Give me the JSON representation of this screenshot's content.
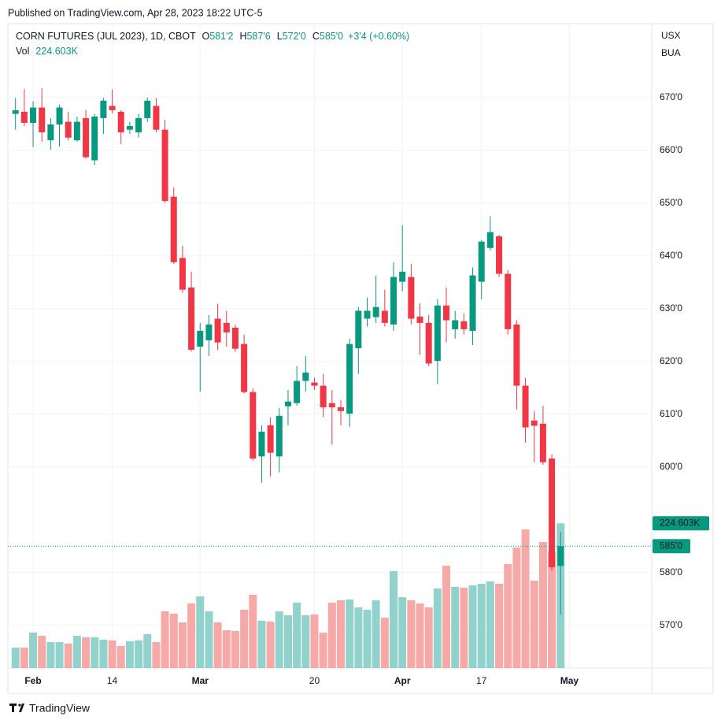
{
  "header": {
    "published": "Published on TradingView.com, Apr 28, 2023 18:22 UTC-5"
  },
  "footer": {
    "brand": "TradingView"
  },
  "chart_data": {
    "type": "candlestick",
    "title": "CORN FUTURES (JUL 2023), 1D, CBOT",
    "ohlc_legend": [
      {
        "key": "O",
        "value": "581'2"
      },
      {
        "key": "H",
        "value": "587'6"
      },
      {
        "key": "L",
        "value": "572'0"
      },
      {
        "key": "C",
        "value": "585'0"
      }
    ],
    "change": "+3'4 (+0.60%)",
    "volume_title": "Vol",
    "volume_legend": "224.603K",
    "currency": "USX",
    "unit": "BUA",
    "up_color": "#089981",
    "down_color": "#f23645",
    "volume_up_color": "#92d2cc",
    "volume_down_color": "#f7a9a7",
    "grid": true,
    "categories": [
      null,
      null,
      "Feb",
      null,
      null,
      null,
      null,
      null,
      null,
      null,
      null,
      "14",
      null,
      null,
      null,
      null,
      null,
      null,
      null,
      null,
      null,
      "Mar",
      null,
      null,
      null,
      null,
      null,
      null,
      null,
      null,
      null,
      null,
      null,
      null,
      "20",
      null,
      null,
      null,
      null,
      null,
      null,
      null,
      null,
      null,
      "Apr",
      null,
      null,
      null,
      null,
      null,
      null,
      null,
      null,
      "17",
      null,
      null,
      null,
      null,
      null,
      null,
      null,
      null,
      null,
      "May"
    ],
    "open": [
      666.9,
      667.3,
      665.2,
      668.1,
      661.9,
      664.9,
      665.4,
      661.9,
      666.1,
      658.1,
      666.1,
      668.4,
      667.3,
      663.9,
      663.4,
      666.1,
      668.4,
      663.9,
      651.2,
      639.6,
      634.0,
      622.8,
      624.0,
      628.1,
      627.3,
      626.4,
      623.3,
      614.2,
      602.0,
      607.9,
      602.0,
      611.5,
      612.1,
      616.3,
      616.0,
      615.4,
      612.1,
      611.3,
      610.1,
      622.5,
      628.1,
      628.4,
      629.6,
      627.0,
      635.1,
      636.0,
      628.5,
      627.3,
      620.1,
      630.6,
      626.1,
      627.6,
      625.8,
      635.1,
      641.5,
      643.7,
      636.6,
      627.0,
      615.4,
      608.8,
      608.2,
      601.6,
      581.25,
      null
    ],
    "high": [
      669.9,
      671.6,
      669.3,
      671.8,
      666.1,
      668.7,
      667.3,
      666.4,
      667.6,
      666.9,
      669.9,
      671.5,
      667.6,
      665.4,
      666.9,
      670.0,
      669.9,
      665.8,
      653.0,
      641.9,
      637.0,
      627.3,
      628.8,
      630.9,
      629.6,
      627.0,
      625.1,
      614.9,
      607.9,
      609.4,
      611.2,
      614.6,
      619.1,
      621.0,
      616.9,
      617.6,
      614.6,
      612.7,
      624.3,
      630.3,
      632.1,
      636.3,
      633.6,
      638.8,
      645.8,
      638.5,
      631.0,
      628.8,
      631.8,
      634.0,
      629.6,
      629.1,
      637.8,
      643.0,
      647.5,
      644.0,
      637.3,
      627.8,
      616.9,
      610.6,
      611.6,
      602.4,
      587.75,
      null
    ],
    "low": [
      663.9,
      664.6,
      660.6,
      661.6,
      660.1,
      660.7,
      661.9,
      661.6,
      658.4,
      657.2,
      663.1,
      667.0,
      661.2,
      663.1,
      662.4,
      665.4,
      663.4,
      650.0,
      638.5,
      633.0,
      621.9,
      614.3,
      621.0,
      622.1,
      622.8,
      621.8,
      613.9,
      601.2,
      597.0,
      598.2,
      599.0,
      607.9,
      611.6,
      614.3,
      614.6,
      609.4,
      604.2,
      607.9,
      607.6,
      617.6,
      626.6,
      627.3,
      626.6,
      625.8,
      633.3,
      627.0,
      621.3,
      619.1,
      615.7,
      623.6,
      624.3,
      625.1,
      623.1,
      631.8,
      641.0,
      636.0,
      625.1,
      610.9,
      604.6,
      600.9,
      600.4,
      580.3,
      572.0,
      null
    ],
    "close": [
      667.6,
      665.2,
      668.1,
      663.4,
      664.9,
      668.1,
      662.4,
      665.4,
      658.7,
      666.4,
      669.4,
      667.6,
      663.4,
      664.6,
      666.1,
      669.4,
      663.9,
      650.4,
      638.8,
      633.6,
      622.2,
      625.8,
      627.0,
      623.6,
      625.5,
      622.4,
      614.2,
      601.6,
      606.7,
      602.7,
      609.7,
      612.4,
      616.3,
      617.9,
      615.4,
      611.3,
      611.3,
      610.6,
      623.3,
      629.6,
      629.6,
      630.3,
      627.3,
      636.0,
      637.0,
      628.1,
      627.3,
      619.6,
      630.6,
      627.8,
      627.8,
      626.1,
      636.3,
      642.7,
      644.5,
      636.6,
      626.1,
      615.4,
      607.5,
      607.8,
      600.9,
      581.0,
      585.0,
      null
    ],
    "volume": {
      "values": [
        31.8,
        31.8,
        55.0,
        50.1,
        40.3,
        40.3,
        37.9,
        50.1,
        47.7,
        47.7,
        44.0,
        42.8,
        34.2,
        41.6,
        42.8,
        52.6,
        40.3,
        88.0,
        84.4,
        70.9,
        100.2,
        111.2,
        88.0,
        70.9,
        58.7,
        57.5,
        90.5,
        113.7,
        73.4,
        72.1,
        88.0,
        81.9,
        101.5,
        81.9,
        83.1,
        55.0,
        101.5,
        105.1,
        106.4,
        94.1,
        90.5,
        105.1,
        78.2,
        150.4,
        110.0,
        105.1,
        100.2,
        94.1,
        123.5,
        158.9,
        125.9,
        124.7,
        128.4,
        130.8,
        134.5,
        130.8,
        161.4,
        187.0,
        215.2,
        135.7,
        195.6,
        180.9,
        224.603,
        null
      ],
      "value_labels": [
        null,
        null,
        null,
        null,
        null,
        null,
        null,
        null,
        null,
        null,
        null,
        null,
        null,
        null,
        null,
        null,
        null,
        null,
        null,
        null,
        null,
        null,
        null,
        null,
        null,
        null,
        null,
        null,
        null,
        null,
        null,
        null,
        null,
        null,
        null,
        null,
        null,
        null,
        null,
        null,
        null,
        null,
        null,
        null,
        null,
        null,
        null,
        null,
        null,
        null,
        null,
        null,
        null,
        null,
        null,
        null,
        null,
        null,
        null,
        null,
        null,
        null,
        "224.603K",
        null
      ],
      "ylim": [
        0,
        1000
      ]
    },
    "last_price": {
      "value": 585,
      "label": "585'0"
    },
    "ylim": [
      561.9,
      684.0
    ],
    "yticks": [
      {
        "value": 570,
        "label": "570'0"
      },
      {
        "value": 580,
        "label": "580'0"
      },
      {
        "value": 600,
        "label": "600'0"
      },
      {
        "value": 610,
        "label": "610'0"
      },
      {
        "value": 620,
        "label": "620'0"
      },
      {
        "value": 630,
        "label": "630'0"
      },
      {
        "value": 640,
        "label": "640'0"
      },
      {
        "value": 650,
        "label": "650'0"
      },
      {
        "value": 660,
        "label": "660'0"
      },
      {
        "value": 670,
        "label": "670'0"
      }
    ]
  }
}
